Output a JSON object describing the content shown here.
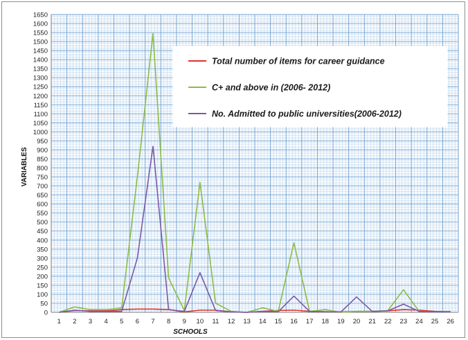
{
  "chart_data": {
    "type": "line",
    "title": "",
    "xlabel": "SCHOOLS",
    "ylabel": "VARIABLES",
    "x": [
      1,
      2,
      3,
      4,
      5,
      6,
      7,
      8,
      9,
      10,
      11,
      12,
      13,
      14,
      15,
      16,
      17,
      18,
      19,
      20,
      21,
      22,
      23,
      24,
      25,
      26
    ],
    "ylim": [
      0,
      1650
    ],
    "ytick_step": 50,
    "grid": true,
    "legend_position": "top-right",
    "series": [
      {
        "name": "Total number of items for career guidance",
        "color": "#e0302a",
        "values": [
          0,
          10,
          8,
          8,
          15,
          18,
          18,
          15,
          2,
          12,
          12,
          2,
          0,
          5,
          10,
          12,
          5,
          3,
          2,
          5,
          5,
          8,
          15,
          12,
          5,
          3
        ]
      },
      {
        "name": "C+ and above in (2006- 2012)",
        "color": "#8dbb45",
        "values": [
          0,
          30,
          15,
          15,
          25,
          750,
          1545,
          190,
          10,
          720,
          50,
          5,
          0,
          25,
          5,
          385,
          5,
          15,
          0,
          5,
          5,
          10,
          125,
          5,
          2,
          5
        ]
      },
      {
        "name": "No. Admitted to public universities(2006-2012)",
        "color": "#7b58a6",
        "values": [
          0,
          12,
          5,
          5,
          5,
          300,
          920,
          15,
          5,
          220,
          10,
          2,
          0,
          5,
          3,
          90,
          5,
          3,
          2,
          85,
          5,
          8,
          45,
          5,
          2,
          3
        ]
      }
    ]
  }
}
